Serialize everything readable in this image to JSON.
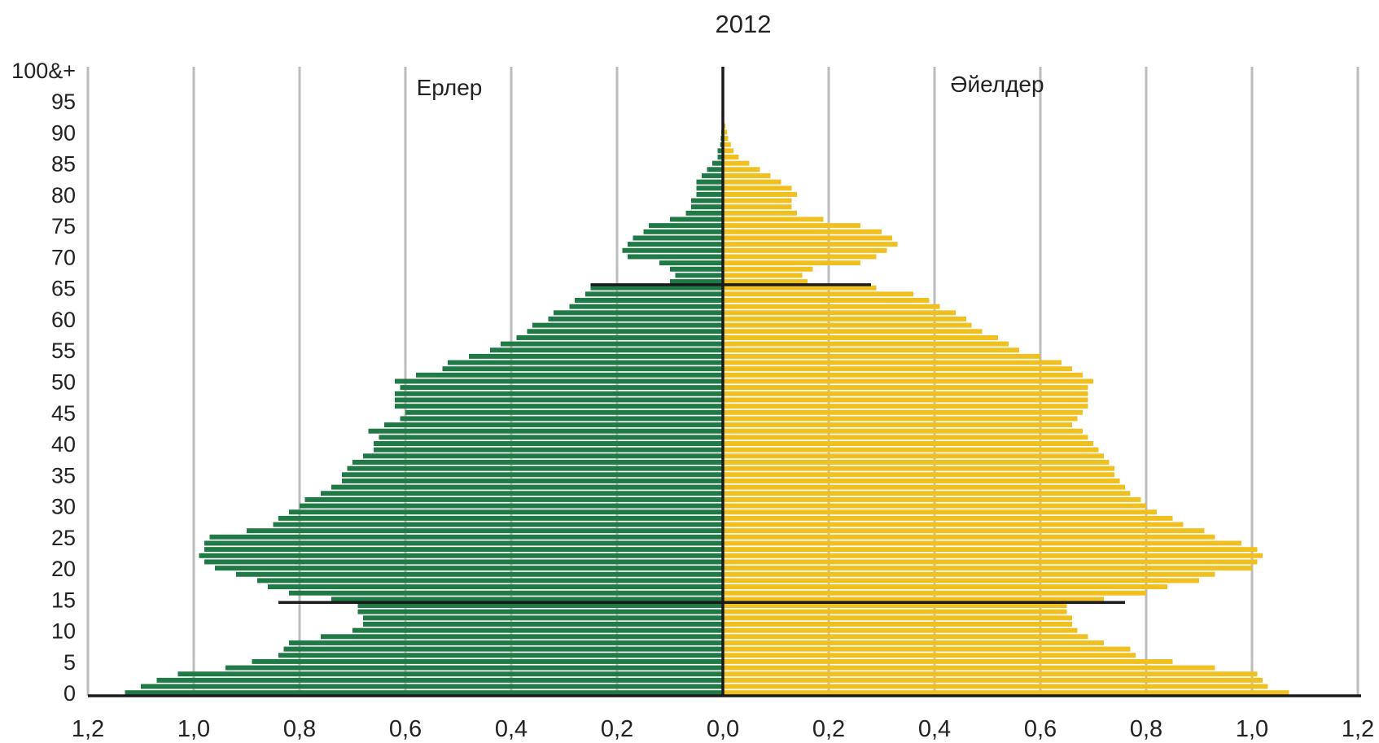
{
  "chart_data": {
    "type": "bar",
    "orientation": "horizontal-population-pyramid",
    "title": "2012",
    "xlabel": "",
    "ylabel": "",
    "xlim": [
      -1.2,
      1.2
    ],
    "x_ticks": [
      "1,2",
      "1,0",
      "0,8",
      "0,6",
      "0,4",
      "0,2",
      "0,0",
      "0,2",
      "0,4",
      "0,6",
      "0,8",
      "1,0",
      "1,2"
    ],
    "y_ticks": [
      "0",
      "5",
      "10",
      "15",
      "20",
      "25",
      "30",
      "35",
      "40",
      "45",
      "50",
      "55",
      "60",
      "65",
      "70",
      "75",
      "80",
      "85",
      "90",
      "95",
      "100&+"
    ],
    "grid": true,
    "series": [
      {
        "name": "Ерлер",
        "color": "#1f7a45",
        "side": "left",
        "ages": [
          0,
          1,
          2,
          3,
          4,
          5,
          6,
          7,
          8,
          9,
          10,
          11,
          12,
          13,
          14,
          15,
          16,
          17,
          18,
          19,
          20,
          21,
          22,
          23,
          24,
          25,
          26,
          27,
          28,
          29,
          30,
          31,
          32,
          33,
          34,
          35,
          36,
          37,
          38,
          39,
          40,
          41,
          42,
          43,
          44,
          45,
          46,
          47,
          48,
          49,
          50,
          51,
          52,
          53,
          54,
          55,
          56,
          57,
          58,
          59,
          60,
          61,
          62,
          63,
          64,
          65,
          66,
          67,
          68,
          69,
          70,
          71,
          72,
          73,
          74,
          75,
          76,
          77,
          78,
          79,
          80,
          81,
          82,
          83,
          84,
          85,
          86,
          87,
          88,
          89,
          90,
          91
        ],
        "values": [
          1.13,
          1.1,
          1.07,
          1.03,
          0.94,
          0.89,
          0.84,
          0.83,
          0.82,
          0.76,
          0.7,
          0.68,
          0.68,
          0.69,
          0.69,
          0.74,
          0.82,
          0.86,
          0.88,
          0.92,
          0.96,
          0.98,
          0.99,
          0.98,
          0.98,
          0.97,
          0.9,
          0.85,
          0.84,
          0.82,
          0.8,
          0.79,
          0.76,
          0.74,
          0.72,
          0.72,
          0.71,
          0.7,
          0.68,
          0.66,
          0.66,
          0.65,
          0.67,
          0.64,
          0.61,
          0.6,
          0.62,
          0.62,
          0.62,
          0.61,
          0.62,
          0.58,
          0.53,
          0.52,
          0.48,
          0.44,
          0.42,
          0.39,
          0.37,
          0.36,
          0.33,
          0.32,
          0.29,
          0.28,
          0.26,
          0.25,
          0.1,
          0.09,
          0.1,
          0.12,
          0.18,
          0.19,
          0.18,
          0.17,
          0.15,
          0.14,
          0.1,
          0.07,
          0.06,
          0.06,
          0.05,
          0.05,
          0.05,
          0.04,
          0.03,
          0.02,
          0.01,
          0.01,
          0.005,
          0.004,
          0.003,
          0.002
        ]
      },
      {
        "name": "Әйелдер",
        "color": "#f0c020",
        "side": "right",
        "ages": [
          0,
          1,
          2,
          3,
          4,
          5,
          6,
          7,
          8,
          9,
          10,
          11,
          12,
          13,
          14,
          15,
          16,
          17,
          18,
          19,
          20,
          21,
          22,
          23,
          24,
          25,
          26,
          27,
          28,
          29,
          30,
          31,
          32,
          33,
          34,
          35,
          36,
          37,
          38,
          39,
          40,
          41,
          42,
          43,
          44,
          45,
          46,
          47,
          48,
          49,
          50,
          51,
          52,
          53,
          54,
          55,
          56,
          57,
          58,
          59,
          60,
          61,
          62,
          63,
          64,
          65,
          66,
          67,
          68,
          69,
          70,
          71,
          72,
          73,
          74,
          75,
          76,
          77,
          78,
          79,
          80,
          81,
          82,
          83,
          84,
          85,
          86,
          87,
          88,
          89,
          90,
          91
        ],
        "values": [
          1.07,
          1.03,
          1.02,
          1.01,
          0.93,
          0.85,
          0.78,
          0.77,
          0.72,
          0.69,
          0.67,
          0.66,
          0.66,
          0.65,
          0.65,
          0.72,
          0.8,
          0.84,
          0.9,
          0.93,
          1.0,
          1.01,
          1.02,
          1.01,
          0.98,
          0.93,
          0.91,
          0.87,
          0.85,
          0.82,
          0.8,
          0.79,
          0.77,
          0.76,
          0.75,
          0.74,
          0.74,
          0.73,
          0.72,
          0.71,
          0.7,
          0.69,
          0.68,
          0.66,
          0.67,
          0.68,
          0.69,
          0.69,
          0.69,
          0.69,
          0.7,
          0.68,
          0.66,
          0.64,
          0.6,
          0.56,
          0.54,
          0.52,
          0.49,
          0.47,
          0.46,
          0.44,
          0.41,
          0.39,
          0.36,
          0.29,
          0.16,
          0.15,
          0.17,
          0.26,
          0.29,
          0.31,
          0.33,
          0.32,
          0.3,
          0.26,
          0.19,
          0.14,
          0.13,
          0.13,
          0.14,
          0.13,
          0.11,
          0.09,
          0.07,
          0.05,
          0.03,
          0.02,
          0.015,
          0.01,
          0.008,
          0.005
        ]
      }
    ],
    "reference_lines": [
      {
        "age": 14.5,
        "left": 0.84,
        "right": 0.76
      },
      {
        "age": 65.5,
        "left": 0.25,
        "right": 0.28
      }
    ]
  }
}
